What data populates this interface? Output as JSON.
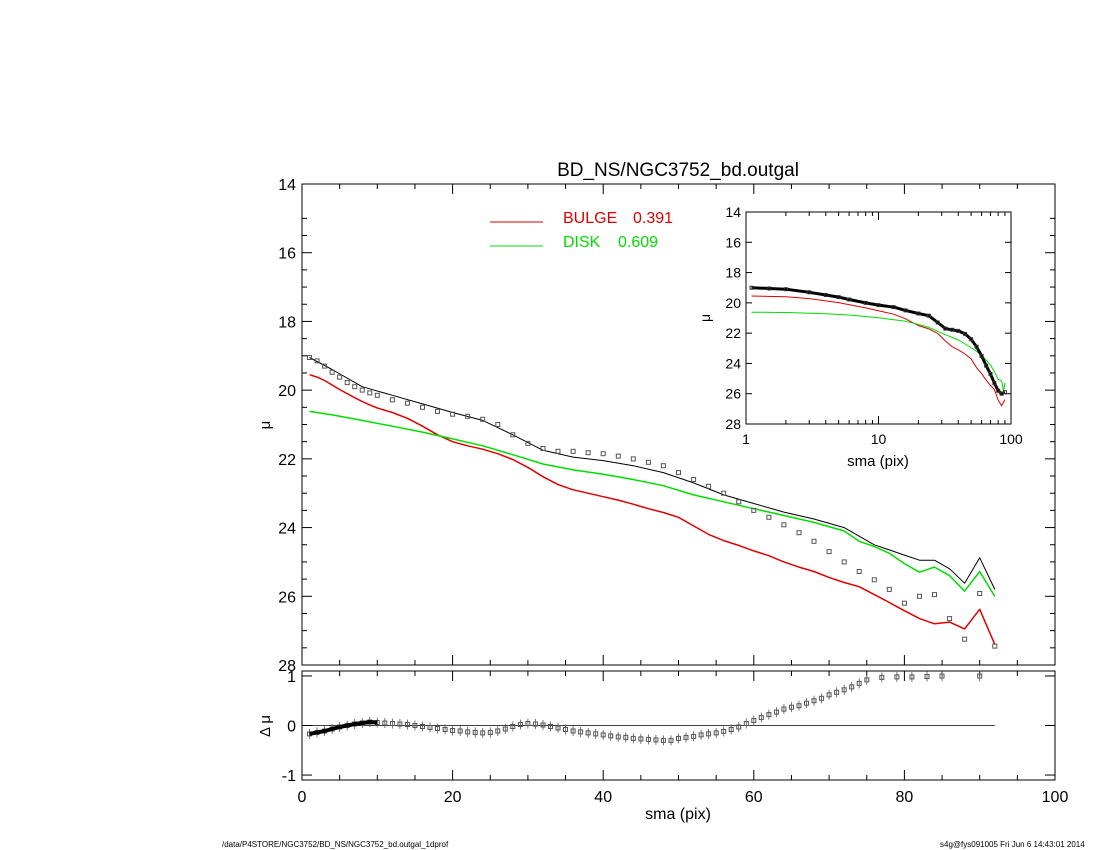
{
  "title": "BD_NS/NGC3752_bd.outgal",
  "footer": {
    "path": "/data/P4STORE/NGC3752/BD_NS/NGC3752_bd.outgal_1dprof",
    "stamp": "s4g@fys091005  Fri Jun  6 14:43:01 2014"
  },
  "colors": {
    "bulge": "#e00000",
    "disk": "#00dd00",
    "total": "#000000",
    "data": "#555555"
  },
  "chart_data": [
    {
      "type": "line",
      "panel": "main",
      "title": "BD_NS/NGC3752_bd.outgal",
      "xlim": [
        0,
        100
      ],
      "ylim": [
        28,
        14
      ],
      "y_inverted": true,
      "ylabel": "μ",
      "x_ticks": [
        0,
        20,
        40,
        60,
        80,
        100
      ],
      "y_ticks": [
        14,
        16,
        18,
        20,
        22,
        24,
        26,
        28
      ],
      "legend": [
        {
          "label": "BULGE",
          "value": "0.391",
          "color": "#e00000"
        },
        {
          "label": "DISK",
          "value": "0.609",
          "color": "#00dd00"
        }
      ],
      "legend_position": "top-center",
      "series": [
        {
          "name": "BULGE",
          "color": "#e00000",
          "x": [
            1,
            2,
            3,
            4,
            5,
            6,
            7,
            8,
            9,
            10,
            12,
            14,
            16,
            18,
            20,
            22,
            24,
            26,
            28,
            30,
            32,
            34,
            36,
            38,
            40,
            42,
            44,
            46,
            48,
            50,
            52,
            54,
            56,
            58,
            60,
            62,
            64,
            66,
            68,
            70,
            72,
            74,
            76,
            78,
            80,
            82,
            84,
            86,
            88,
            90,
            92
          ],
          "y": [
            19.55,
            19.62,
            19.72,
            19.85,
            19.98,
            20.1,
            20.22,
            20.33,
            20.43,
            20.52,
            20.65,
            20.82,
            21.05,
            21.3,
            21.5,
            21.62,
            21.72,
            21.85,
            22.02,
            22.25,
            22.52,
            22.75,
            22.9,
            23.0,
            23.1,
            23.2,
            23.32,
            23.45,
            23.56,
            23.7,
            23.95,
            24.2,
            24.38,
            24.52,
            24.68,
            24.82,
            25.0,
            25.15,
            25.28,
            25.45,
            25.6,
            25.72,
            25.95,
            26.18,
            26.42,
            26.65,
            26.8,
            26.75,
            26.95,
            26.38,
            27.4
          ]
        },
        {
          "name": "DISK",
          "color": "#00dd00",
          "x": [
            1,
            4,
            8,
            12,
            16,
            20,
            24,
            28,
            32,
            36,
            40,
            44,
            48,
            52,
            56,
            60,
            64,
            68,
            72,
            74,
            76,
            78,
            80,
            82,
            84,
            86,
            88,
            90,
            92
          ],
          "y": [
            20.62,
            20.72,
            20.88,
            21.05,
            21.22,
            21.42,
            21.62,
            21.88,
            22.15,
            22.32,
            22.45,
            22.6,
            22.78,
            23.05,
            23.25,
            23.45,
            23.65,
            23.85,
            24.1,
            24.4,
            24.55,
            24.75,
            25.05,
            25.3,
            25.15,
            25.4,
            25.85,
            25.28,
            26.0
          ]
        },
        {
          "name": "",
          "color": "#000000",
          "x": [
            1,
            4,
            8,
            12,
            16,
            20,
            24,
            28,
            32,
            36,
            40,
            44,
            48,
            52,
            56,
            60,
            64,
            68,
            72,
            74,
            76,
            78,
            80,
            82,
            84,
            86,
            88,
            90,
            92
          ],
          "y": [
            19.05,
            19.4,
            19.9,
            20.15,
            20.4,
            20.65,
            20.88,
            21.3,
            21.75,
            21.95,
            22.05,
            22.2,
            22.4,
            22.7,
            23.05,
            23.3,
            23.55,
            23.75,
            24.0,
            24.25,
            24.5,
            24.65,
            24.8,
            24.95,
            24.95,
            25.2,
            25.62,
            24.88,
            25.8
          ]
        },
        {
          "name": "",
          "color": "#555555",
          "marker": "square",
          "x": [
            1,
            2,
            3,
            4,
            5,
            6,
            7,
            8,
            9,
            10,
            12,
            14,
            16,
            18,
            20,
            22,
            24,
            26,
            28,
            30,
            32,
            34,
            36,
            38,
            40,
            42,
            44,
            46,
            48,
            50,
            52,
            54,
            56,
            58,
            60,
            62,
            64,
            66,
            68,
            70,
            72,
            74,
            76,
            78,
            80,
            82,
            84,
            86,
            88,
            90,
            92
          ],
          "y": [
            19.05,
            19.15,
            19.3,
            19.48,
            19.62,
            19.78,
            19.9,
            20.0,
            20.08,
            20.15,
            20.28,
            20.38,
            20.5,
            20.62,
            20.7,
            20.76,
            20.85,
            21.0,
            21.3,
            21.55,
            21.7,
            21.78,
            21.78,
            21.82,
            21.85,
            21.92,
            22.0,
            22.1,
            22.2,
            22.4,
            22.6,
            22.8,
            23.0,
            23.25,
            23.5,
            23.7,
            23.92,
            24.15,
            24.4,
            24.7,
            25.0,
            25.28,
            25.52,
            25.8,
            26.2,
            26.0,
            25.95,
            26.65,
            27.25,
            25.92,
            27.45
          ]
        }
      ]
    },
    {
      "type": "line",
      "panel": "inset",
      "xscale": "log",
      "xlim": [
        1,
        100
      ],
      "ylim": [
        28,
        14
      ],
      "y_inverted": true,
      "xlabel": "sma (pix)",
      "ylabel": "μ",
      "x_ticks": [
        1,
        10,
        100
      ],
      "y_ticks": [
        14,
        16,
        18,
        20,
        22,
        24,
        26,
        28
      ],
      "series": [
        {
          "name": "",
          "color": "#000000",
          "marker": "square",
          "x": [
            1.1,
            1.5,
            2,
            3,
            4,
            5,
            6,
            8,
            10,
            13,
            16,
            20,
            24,
            28,
            32,
            36,
            40,
            45,
            50,
            55,
            60,
            65,
            70,
            75,
            80,
            85,
            90
          ],
          "y": [
            19.0,
            19.05,
            19.1,
            19.3,
            19.48,
            19.62,
            19.78,
            20.0,
            20.15,
            20.28,
            20.5,
            20.7,
            20.85,
            21.3,
            21.7,
            21.78,
            21.85,
            22.05,
            22.4,
            22.9,
            23.5,
            24.15,
            24.7,
            25.3,
            25.8,
            26.0,
            25.9
          ]
        },
        {
          "name": "",
          "color": "#e00000",
          "x": [
            1.1,
            2,
            3,
            5,
            8,
            10,
            13,
            16,
            20,
            24,
            28,
            32,
            36,
            40,
            45,
            50,
            55,
            60,
            65,
            70,
            75,
            80,
            85,
            90
          ],
          "y": [
            19.55,
            19.6,
            19.72,
            19.98,
            20.33,
            20.52,
            20.75,
            21.05,
            21.5,
            21.72,
            22.02,
            22.52,
            22.9,
            23.1,
            23.38,
            23.7,
            24.28,
            24.68,
            25.1,
            25.45,
            25.72,
            26.42,
            26.8,
            26.38
          ]
        },
        {
          "name": "",
          "color": "#00dd00",
          "x": [
            1.1,
            2,
            4,
            6,
            10,
            16,
            20,
            24,
            30,
            40,
            50,
            60,
            70,
            75,
            80,
            85,
            88,
            90
          ],
          "y": [
            20.62,
            20.64,
            20.72,
            20.8,
            20.98,
            21.22,
            21.42,
            21.62,
            22.0,
            22.45,
            22.95,
            23.45,
            24.1,
            24.55,
            25.05,
            25.15,
            25.85,
            25.28
          ]
        }
      ]
    },
    {
      "type": "scatter",
      "panel": "residual",
      "xlim": [
        0,
        100
      ],
      "ylim": [
        -1.1,
        1.1
      ],
      "xlabel": "sma (pix)",
      "ylabel": "Δ μ",
      "x_ticks": [
        0,
        20,
        40,
        60,
        80,
        100
      ],
      "y_ticks": [
        -1,
        0,
        1
      ],
      "series": [
        {
          "name": "",
          "color": "#555555",
          "marker": "square",
          "x": [
            1,
            2,
            3,
            4,
            5,
            6,
            7,
            8,
            9,
            10,
            11,
            12,
            13,
            14,
            15,
            16,
            17,
            18,
            19,
            20,
            21,
            22,
            23,
            24,
            25,
            26,
            27,
            28,
            29,
            30,
            31,
            32,
            33,
            34,
            35,
            36,
            37,
            38,
            39,
            40,
            41,
            42,
            43,
            44,
            45,
            46,
            47,
            48,
            49,
            50,
            51,
            52,
            53,
            54,
            55,
            56,
            57,
            58,
            59,
            60,
            61,
            62,
            63,
            64,
            65,
            66,
            67,
            68,
            69,
            70,
            71,
            72,
            73,
            74,
            75,
            77,
            79,
            81,
            83,
            85,
            90
          ],
          "y": [
            -0.17,
            -0.14,
            -0.11,
            -0.07,
            -0.03,
            0.0,
            0.03,
            0.05,
            0.07,
            0.06,
            0.05,
            0.04,
            0.03,
            0.02,
            0.0,
            -0.02,
            -0.04,
            -0.06,
            -0.08,
            -0.1,
            -0.11,
            -0.13,
            -0.14,
            -0.15,
            -0.14,
            -0.11,
            -0.07,
            -0.02,
            0.02,
            0.04,
            0.03,
            0.01,
            -0.02,
            -0.05,
            -0.08,
            -0.11,
            -0.13,
            -0.15,
            -0.17,
            -0.19,
            -0.21,
            -0.23,
            -0.24,
            -0.26,
            -0.27,
            -0.28,
            -0.29,
            -0.3,
            -0.3,
            -0.26,
            -0.24,
            -0.22,
            -0.19,
            -0.17,
            -0.15,
            -0.12,
            -0.08,
            -0.03,
            0.04,
            0.1,
            0.16,
            0.22,
            0.27,
            0.33,
            0.37,
            0.4,
            0.45,
            0.5,
            0.55,
            0.62,
            0.67,
            0.72,
            0.78,
            0.85,
            0.92,
            0.97,
            0.98,
            0.98,
            0.99,
            1.0,
            1.0
          ]
        }
      ]
    }
  ]
}
